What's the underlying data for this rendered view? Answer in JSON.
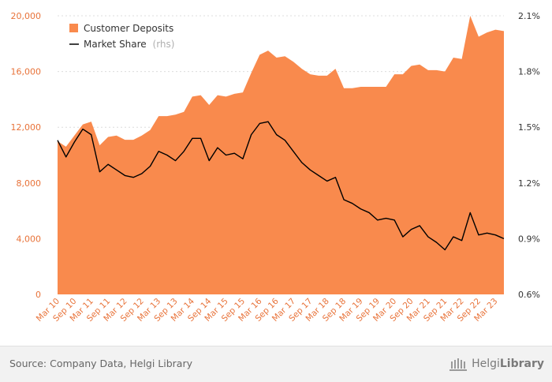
{
  "chart_data": {
    "type": "area+line",
    "title": "",
    "xlabel": "",
    "ylabel_left": "",
    "ylabel_right": "",
    "x": [
      "Mar 10",
      "Jun 10",
      "Sep 10",
      "Dec 10",
      "Mar 11",
      "Jun 11",
      "Sep 11",
      "Dec 11",
      "Mar 12",
      "Jun 12",
      "Sep 12",
      "Dec 12",
      "Mar 13",
      "Jun 13",
      "Sep 13",
      "Dec 13",
      "Mar 14",
      "Jun 14",
      "Sep 14",
      "Dec 14",
      "Mar 15",
      "Jun 15",
      "Sep 15",
      "Dec 15",
      "Mar 16",
      "Jun 16",
      "Sep 16",
      "Dec 16",
      "Mar 17",
      "Jun 17",
      "Sep 17",
      "Dec 17",
      "Mar 18",
      "Jun 18",
      "Sep 18",
      "Dec 18",
      "Mar 19",
      "Jun 19",
      "Sep 19",
      "Dec 19",
      "Mar 20",
      "Jun 20",
      "Sep 20",
      "Dec 20",
      "Mar 21",
      "Jun 21",
      "Sep 21",
      "Dec 21",
      "Mar 22",
      "Jun 22",
      "Sep 22",
      "Dec 22",
      "Mar 23",
      "Jun 23"
    ],
    "x_tick_labels": [
      "Mar 10",
      "Sep 10",
      "Mar 11",
      "Sep 11",
      "Mar 12",
      "Sep 12",
      "Mar 13",
      "Sep 13",
      "Mar 14",
      "Sep 14",
      "Mar 15",
      "Sep 15",
      "Mar 16",
      "Sep 16",
      "Mar 17",
      "Sep 17",
      "Mar 18",
      "Sep 18",
      "Mar 19",
      "Sep 19",
      "Mar 20",
      "Sep 20",
      "Mar 21",
      "Sep 21",
      "Mar 22",
      "Sep 22",
      "Mar 23"
    ],
    "series": [
      {
        "name": "Customer Deposits",
        "type": "area",
        "axis": "left",
        "color": "#f98a4d",
        "values": [
          11000,
          10600,
          11400,
          12200,
          12400,
          10700,
          11300,
          11400,
          11100,
          11100,
          11400,
          11800,
          12800,
          12800,
          12900,
          13100,
          14200,
          14300,
          13600,
          14300,
          14200,
          14400,
          14500,
          15900,
          17200,
          17500,
          17000,
          17100,
          16700,
          16200,
          15800,
          15700,
          15700,
          16200,
          14800,
          14800,
          14900,
          14900,
          14900,
          14900,
          15800,
          15800,
          16400,
          16500,
          16100,
          16100,
          16000,
          17000,
          16900,
          20000,
          18500,
          18800,
          19000,
          18900
        ]
      },
      {
        "name": "Market Share",
        "suffix": "(rhs)",
        "type": "line",
        "axis": "right",
        "color": "#000000",
        "values": [
          1.43,
          1.34,
          1.42,
          1.49,
          1.46,
          1.26,
          1.3,
          1.27,
          1.24,
          1.23,
          1.25,
          1.29,
          1.37,
          1.35,
          1.32,
          1.37,
          1.44,
          1.44,
          1.32,
          1.39,
          1.35,
          1.36,
          1.33,
          1.46,
          1.52,
          1.53,
          1.46,
          1.43,
          1.37,
          1.31,
          1.27,
          1.24,
          1.21,
          1.23,
          1.11,
          1.09,
          1.06,
          1.04,
          1.0,
          1.01,
          1.0,
          0.91,
          0.95,
          0.97,
          0.91,
          0.88,
          0.84,
          0.91,
          0.89,
          1.04,
          0.92,
          0.93,
          0.92,
          0.9
        ]
      }
    ],
    "y_left": {
      "ticks": [
        0,
        4000,
        8000,
        12000,
        16000,
        20000
      ],
      "tick_labels": [
        "0",
        "4,000",
        "8,000",
        "12,000",
        "16,000",
        "20,000"
      ],
      "ylim": [
        0,
        20000
      ]
    },
    "y_right": {
      "ticks": [
        0.6,
        0.9,
        1.2,
        1.5,
        1.8,
        2.1
      ],
      "tick_labels": [
        "0.6%",
        "0.9%",
        "1.2%",
        "1.5%",
        "1.8%",
        "2.1%"
      ],
      "ylim": [
        0.6,
        2.1
      ]
    },
    "grid": true,
    "legend": "top-left"
  },
  "footer": {
    "source": "Source: Company Data, Helgi Library",
    "brand_regular": "Helgi",
    "brand_bold": "Library"
  }
}
